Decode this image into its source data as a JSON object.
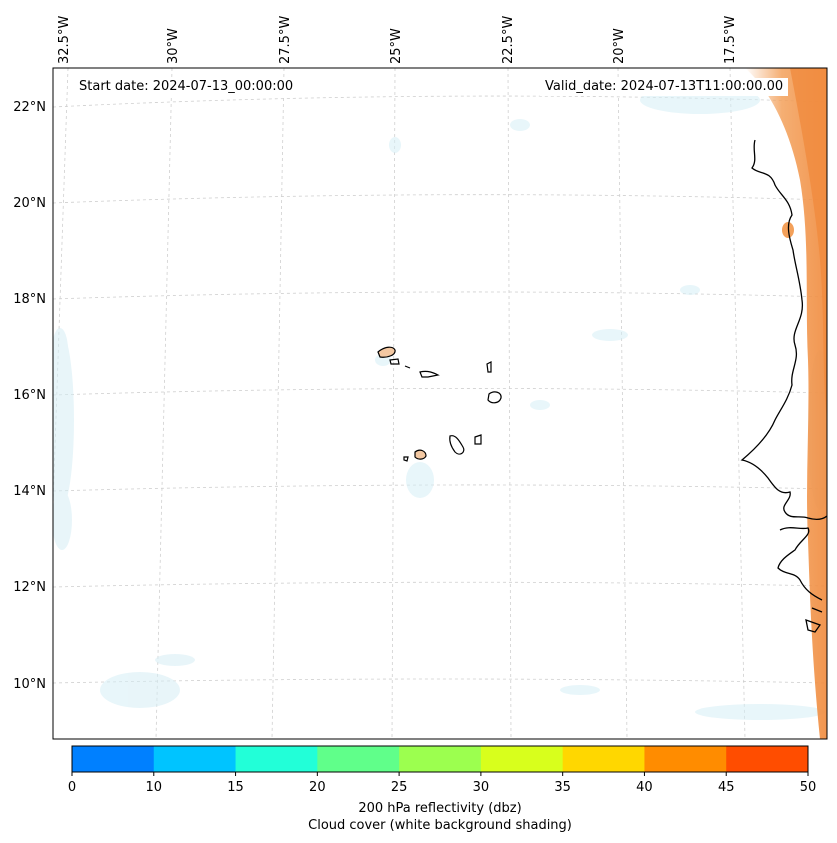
{
  "annotations": {
    "start_label": "Start date: 2024-07-13_00:00:00",
    "valid_label": "Valid_date: 2024-07-13T11:00:00.00"
  },
  "map": {
    "lon_ticks": [
      "32.5°W",
      "30°W",
      "27.5°W",
      "25°W",
      "22.5°W",
      "20°W",
      "17.5°W"
    ],
    "lat_ticks": [
      "22°N",
      "20°N",
      "18°N",
      "16°N",
      "14°N",
      "12°N",
      "10°N"
    ],
    "gridlines": "dashed light gray",
    "region": "Cabo Verde and West African coast"
  },
  "colorbar": {
    "ticks": [
      "0",
      "10",
      "15",
      "20",
      "25",
      "30",
      "35",
      "40",
      "45",
      "50"
    ],
    "colors": [
      "#0080ff",
      "#00c4ff",
      "#22ffd8",
      "#60ff8a",
      "#9cff4f",
      "#d8ff1c",
      "#ffd700",
      "#ff8c00",
      "#ff4d00"
    ],
    "label_line1": "200 hPa reflectivity (dbz)",
    "label_line2": "Cloud cover (white background shading)"
  },
  "legend_colors": {
    "cloud_cover": "#d6eef5",
    "land_accent": "#f3a05a"
  }
}
